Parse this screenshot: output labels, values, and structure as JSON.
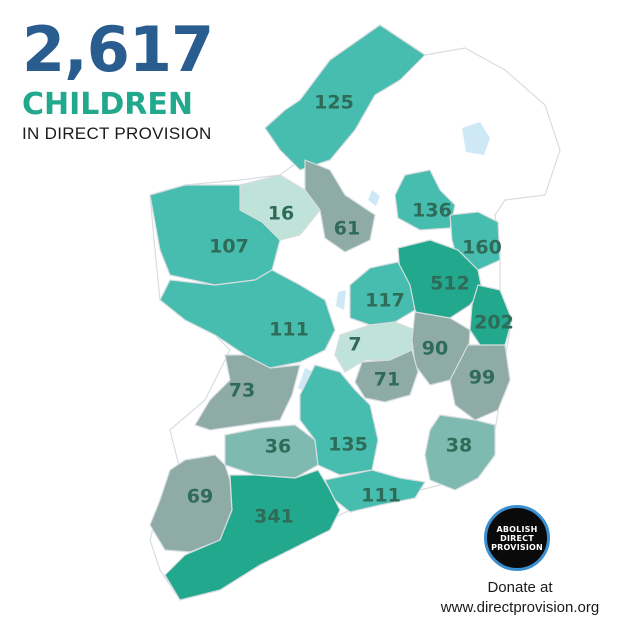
{
  "headline": {
    "total": "2,617",
    "children_word": "CHILDREN",
    "subtitle": "IN DIRECT PROVISION"
  },
  "colors": {
    "total_number": "#2a5d8f",
    "children_word": "#22a88c",
    "map_no_data": "#ffffff",
    "map_border": "#d7dde0",
    "water": "#cfe8f5",
    "label_text": "#2f6b58",
    "shade_darkest": "#22a88c",
    "shade_dark": "#46bdae",
    "shade_mid": "#7fbab0",
    "shade_grey": "#8eaba6",
    "shade_light": "#bfe3d8"
  },
  "counties": [
    {
      "id": "donegal",
      "count": "125",
      "shade": "shade_dark"
    },
    {
      "id": "sligo",
      "count": "16",
      "shade": "shade_light"
    },
    {
      "id": "leitrim",
      "count": "61",
      "shade": "shade_grey"
    },
    {
      "id": "mayo",
      "count": "107",
      "shade": "shade_dark"
    },
    {
      "id": "monaghan",
      "count": "136",
      "shade": "shade_dark"
    },
    {
      "id": "louth",
      "count": "160",
      "shade": "shade_dark"
    },
    {
      "id": "meath",
      "count": "512",
      "shade": "shade_darkest"
    },
    {
      "id": "dublin",
      "count": "202",
      "shade": "shade_darkest"
    },
    {
      "id": "westmeath",
      "count": "117",
      "shade": "shade_dark"
    },
    {
      "id": "galway",
      "count": "111",
      "shade": "shade_dark"
    },
    {
      "id": "offaly",
      "count": "7",
      "shade": "shade_light"
    },
    {
      "id": "kildare",
      "count": "90",
      "shade": "shade_grey"
    },
    {
      "id": "wicklow",
      "count": "99",
      "shade": "shade_grey"
    },
    {
      "id": "laois",
      "count": "71",
      "shade": "shade_grey"
    },
    {
      "id": "clare",
      "count": "73",
      "shade": "shade_grey"
    },
    {
      "id": "limerick",
      "count": "36",
      "shade": "shade_mid"
    },
    {
      "id": "tipperary",
      "count": "135",
      "shade": "shade_dark"
    },
    {
      "id": "wexford",
      "count": "38",
      "shade": "shade_mid"
    },
    {
      "id": "kerry",
      "count": "69",
      "shade": "shade_grey"
    },
    {
      "id": "cork",
      "count": "341",
      "shade": "shade_darkest"
    },
    {
      "id": "waterford",
      "count": "111",
      "shade": "shade_dark"
    }
  ],
  "logo": {
    "line1": "ABOLISH",
    "line2": "DIRECT",
    "line3": "PROVISION"
  },
  "donate": {
    "line1": "Donate at",
    "line2": "www.directprovision.org"
  }
}
